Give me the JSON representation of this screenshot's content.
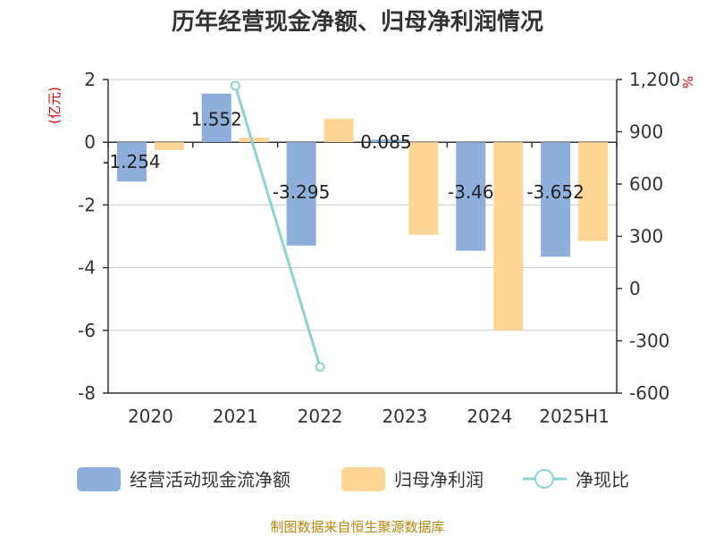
{
  "chart_data": {
    "type": "bar",
    "title": "历年经营现金净额、归母净利润情况",
    "categories": [
      "2020",
      "2021",
      "2022",
      "2023",
      "2024",
      "2025H1"
    ],
    "y_left": {
      "label": "(亿元)",
      "ticks": [
        "2",
        "0",
        "-2",
        "-4",
        "-6",
        "-8"
      ],
      "range": [
        -8,
        2
      ]
    },
    "y_right": {
      "label": "%",
      "ticks": [
        "1,200",
        "900",
        "600",
        "300",
        "0",
        "-300",
        "-600"
      ],
      "range": [
        -600,
        1200
      ]
    },
    "grid": true,
    "legend_position": "bottom",
    "series": [
      {
        "name": "经营活动现金流净额",
        "kind": "bar",
        "axis": "left",
        "color": "#8eaedb",
        "values": [
          -1.254,
          1.552,
          -3.295,
          0.085,
          -3.46,
          -3.652
        ],
        "labels": [
          "-1.254",
          "1.552",
          "-3.295",
          "0.085",
          "-3.46",
          "-3.652"
        ]
      },
      {
        "name": "归母净利润",
        "kind": "bar",
        "axis": "left",
        "color": "#fdd594",
        "values": [
          -0.25,
          0.15,
          0.75,
          -2.95,
          -6.0,
          -3.15
        ]
      },
      {
        "name": "净现比",
        "kind": "line",
        "axis": "right",
        "color": "#8dd3d6",
        "values": [
          null,
          1165,
          -450,
          null,
          null,
          null
        ]
      }
    ],
    "source": "制图数据来自恒生聚源数据库"
  }
}
